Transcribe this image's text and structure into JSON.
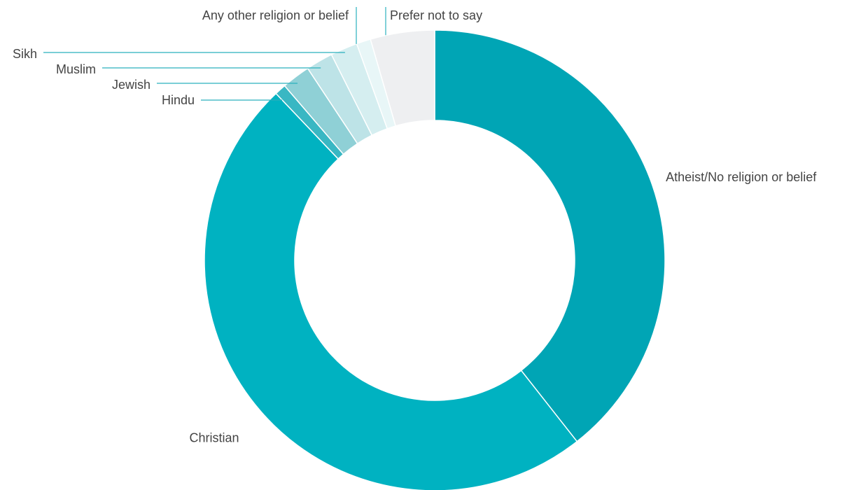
{
  "chart_data": {
    "type": "pie",
    "donut": true,
    "start": "12 o'clock",
    "direction": "clockwise",
    "legend": "none",
    "labels_external": true,
    "categories": [
      "Atheist/No religion or belief",
      "Christian",
      "Hindu",
      "Jewish",
      "Muslim",
      "Sikh",
      "Any other religion or belief",
      "Prefer not to say"
    ],
    "values": [
      39.4,
      48.5,
      0.8,
      2.0,
      1.9,
      1.9,
      1.0,
      4.5
    ],
    "colors": [
      "#00a5b5",
      "#00b2c1",
      "#39b7c3",
      "#8fd0d6",
      "#bde3e7",
      "#d5eef0",
      "#e8f6f7",
      "#eeeff1"
    ]
  }
}
